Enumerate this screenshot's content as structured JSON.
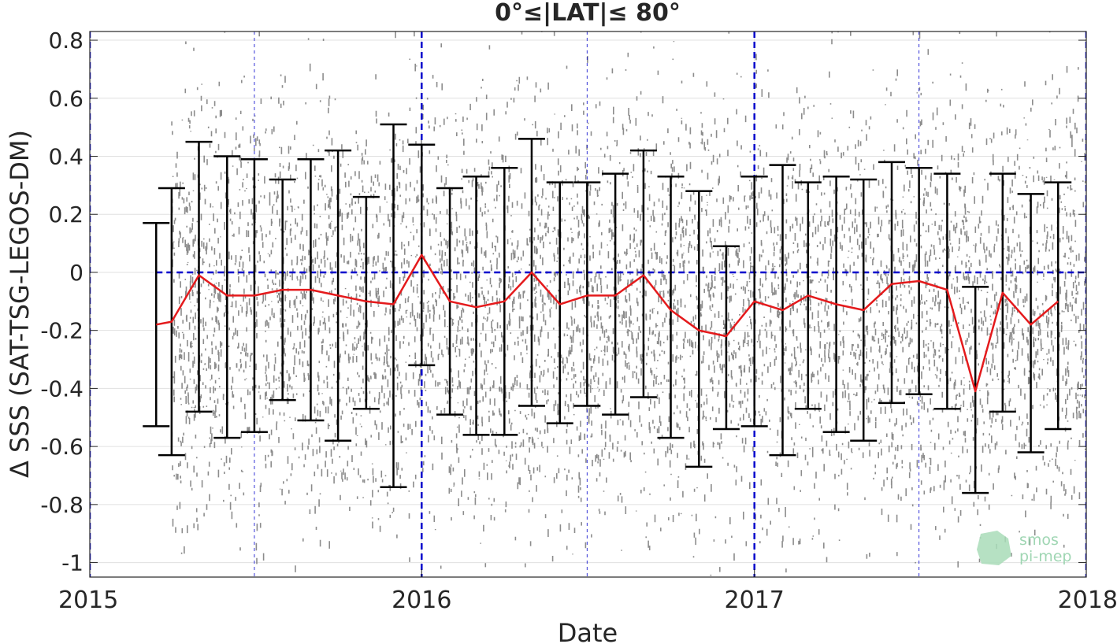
{
  "chart_data": {
    "type": "line",
    "title": "0°≤|LAT|≤ 80°",
    "xlabel": "Date",
    "ylabel": "Δ SSS (SAT-TSG-LEGOS-DM)",
    "xlim": [
      "2015-01-01",
      "2018-01-01"
    ],
    "ylim": [
      -1.05,
      0.83
    ],
    "x_ticks": [
      "2015",
      "2016",
      "2017",
      "2018"
    ],
    "y_ticks": [
      "-1",
      "-0.8",
      "-0.6",
      "-0.4",
      "-0.2",
      "0",
      "0.2",
      "0.4",
      "0.6",
      "0.8"
    ],
    "y_tick_values": [
      -1,
      -0.8,
      -0.6,
      -0.4,
      -0.2,
      0,
      0.2,
      0.4,
      0.6,
      0.8
    ],
    "grid": true,
    "series": [
      {
        "kind": "mean_with_std_errorbars",
        "color": "#e41a1c",
        "x": [
          "2015-03-15",
          "2015-04-01",
          "2015-05-01",
          "2015-06-01",
          "2015-07-01",
          "2015-08-01",
          "2015-09-01",
          "2015-10-01",
          "2015-11-01",
          "2015-12-01",
          "2016-01-01",
          "2016-02-01",
          "2016-03-01",
          "2016-04-01",
          "2016-05-01",
          "2016-06-01",
          "2016-07-01",
          "2016-08-01",
          "2016-09-01",
          "2016-10-01",
          "2016-11-01",
          "2016-12-01",
          "2017-01-01",
          "2017-02-01",
          "2017-03-01",
          "2017-04-01",
          "2017-05-01",
          "2017-06-01",
          "2017-07-01",
          "2017-08-01",
          "2017-09-01",
          "2017-10-01",
          "2017-11-01",
          "2017-12-01"
        ],
        "mean": [
          -0.18,
          -0.17,
          -0.01,
          -0.08,
          -0.08,
          -0.06,
          -0.06,
          -0.08,
          -0.1,
          -0.11,
          0.06,
          -0.1,
          -0.12,
          -0.1,
          0.0,
          -0.11,
          -0.08,
          -0.08,
          -0.01,
          -0.13,
          -0.2,
          -0.22,
          -0.1,
          -0.13,
          -0.08,
          -0.11,
          -0.13,
          -0.04,
          -0.03,
          -0.06,
          -0.41,
          -0.07,
          -0.18,
          -0.1
        ],
        "upper": [
          0.17,
          0.29,
          0.45,
          0.4,
          0.39,
          0.32,
          0.39,
          0.42,
          0.26,
          0.51,
          0.44,
          0.29,
          0.33,
          0.36,
          0.46,
          0.31,
          0.31,
          0.34,
          0.42,
          0.33,
          0.28,
          0.09,
          0.33,
          0.37,
          0.31,
          0.33,
          0.32,
          0.38,
          0.36,
          0.34,
          -0.05,
          0.34,
          0.27,
          0.31
        ],
        "lower": [
          -0.53,
          -0.63,
          -0.48,
          -0.57,
          -0.55,
          -0.44,
          -0.51,
          -0.58,
          -0.47,
          -0.74,
          -0.32,
          -0.49,
          -0.56,
          -0.56,
          -0.46,
          -0.52,
          -0.46,
          -0.49,
          -0.43,
          -0.57,
          -0.67,
          -0.54,
          -0.53,
          -0.63,
          -0.47,
          -0.55,
          -0.58,
          -0.45,
          -0.42,
          -0.47,
          -0.76,
          -0.48,
          -0.62,
          -0.54
        ]
      },
      {
        "kind": "scatter_cloud",
        "color": "#808080",
        "x_range": [
          "2015-04-01",
          "2018-01-01"
        ],
        "y_range": [
          -1.05,
          0.83
        ]
      }
    ],
    "reference_lines": {
      "horizontal_zero": {
        "y": 0,
        "color": "#0000cc",
        "style": "dashed"
      },
      "vertical_year_dates": [
        "2015-01-01",
        "2016-01-01",
        "2017-01-01",
        "2018-01-01"
      ],
      "vertical_half_year_dates": [
        "2015-07-01",
        "2016-07-01",
        "2017-07-01"
      ],
      "color": "#0000cc"
    },
    "watermark": {
      "line1": "smos",
      "line2": "pi-mep"
    }
  }
}
